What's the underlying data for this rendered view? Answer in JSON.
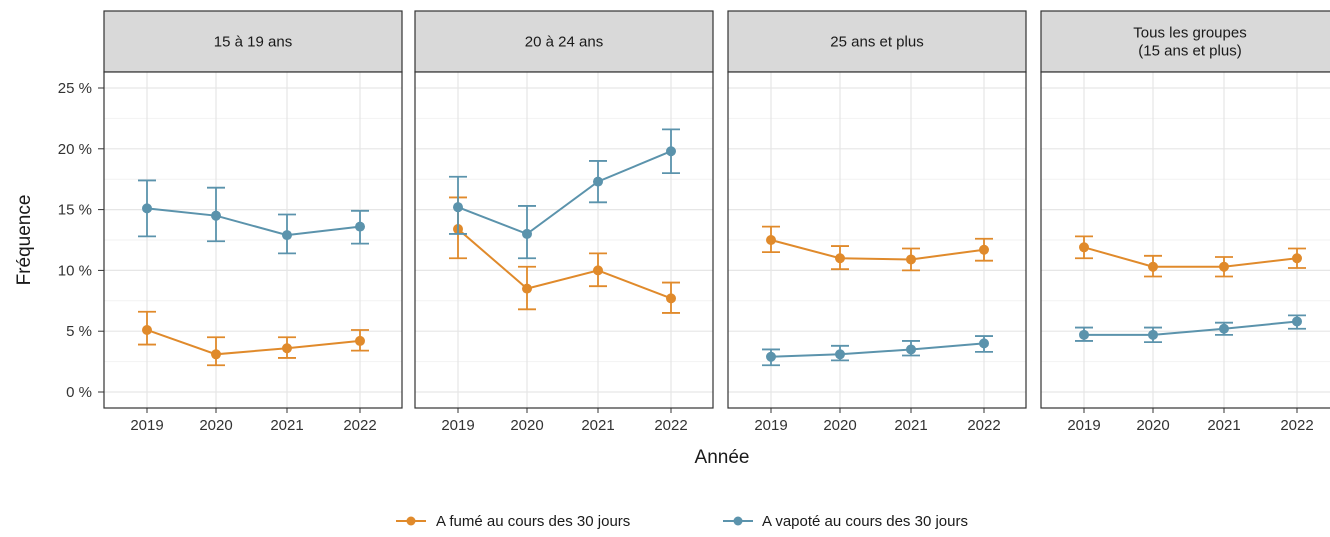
{
  "chart_data": {
    "type": "line",
    "ylabel": "Fréquence",
    "xlabel": "Année",
    "ylim": [
      0,
      25
    ],
    "y_ticks": [
      0,
      5,
      10,
      15,
      20,
      25
    ],
    "y_tick_labels": [
      "0 %",
      "5 %",
      "10 %",
      "15 %",
      "20 %",
      "25 %"
    ],
    "x": [
      "2019",
      "2020",
      "2021",
      "2022"
    ],
    "grid": true,
    "legend_position": "bottom",
    "error_bars": true,
    "colors": {
      "smoked": "#E08A2B",
      "vaped": "#5B93AC"
    },
    "panels": [
      {
        "title": [
          "15 à 19 ans"
        ],
        "series": [
          {
            "name": "A fumé au cours des 30 jours",
            "key": "smoked",
            "values": [
              5.1,
              3.1,
              3.6,
              4.2
            ],
            "lower": [
              3.9,
              2.2,
              2.8,
              3.4
            ],
            "upper": [
              6.6,
              4.5,
              4.5,
              5.1
            ]
          },
          {
            "name": "A vapoté au cours des 30 jours",
            "key": "vaped",
            "values": [
              15.1,
              14.5,
              12.9,
              13.6
            ],
            "lower": [
              12.8,
              12.4,
              11.4,
              12.2
            ],
            "upper": [
              17.4,
              16.8,
              14.6,
              14.9
            ]
          }
        ]
      },
      {
        "title": [
          "20 à 24 ans"
        ],
        "series": [
          {
            "name": "A fumé au cours des 30 jours",
            "key": "smoked",
            "values": [
              13.4,
              8.5,
              10.0,
              7.7
            ],
            "lower": [
              11.0,
              6.8,
              8.7,
              6.5
            ],
            "upper": [
              16.0,
              10.3,
              11.4,
              9.0
            ]
          },
          {
            "name": "A vapoté au cours des 30 jours",
            "key": "vaped",
            "values": [
              15.2,
              13.0,
              17.3,
              19.8
            ],
            "lower": [
              13.0,
              11.0,
              15.6,
              18.0
            ],
            "upper": [
              17.7,
              15.3,
              19.0,
              21.6
            ]
          }
        ]
      },
      {
        "title": [
          "25 ans et plus"
        ],
        "series": [
          {
            "name": "A fumé au cours des 30 jours",
            "key": "smoked",
            "values": [
              12.5,
              11.0,
              10.9,
              11.7
            ],
            "lower": [
              11.5,
              10.1,
              10.0,
              10.8
            ],
            "upper": [
              13.6,
              12.0,
              11.8,
              12.6
            ]
          },
          {
            "name": "A vapoté au cours des 30 jours",
            "key": "vaped",
            "values": [
              2.9,
              3.1,
              3.5,
              4.0
            ],
            "lower": [
              2.2,
              2.6,
              3.0,
              3.3
            ],
            "upper": [
              3.5,
              3.8,
              4.2,
              4.6
            ]
          }
        ]
      },
      {
        "title": [
          "Tous les groupes",
          "(15 ans et plus)"
        ],
        "series": [
          {
            "name": "A fumé au cours des 30 jours",
            "key": "smoked",
            "values": [
              11.9,
              10.3,
              10.3,
              11.0
            ],
            "lower": [
              11.0,
              9.5,
              9.5,
              10.2
            ],
            "upper": [
              12.8,
              11.2,
              11.1,
              11.8
            ]
          },
          {
            "name": "A vapoté au cours des 30 jours",
            "key": "vaped",
            "values": [
              4.7,
              4.7,
              5.2,
              5.8
            ],
            "lower": [
              4.2,
              4.1,
              4.7,
              5.2
            ],
            "upper": [
              5.3,
              5.3,
              5.7,
              6.3
            ]
          }
        ]
      }
    ]
  }
}
